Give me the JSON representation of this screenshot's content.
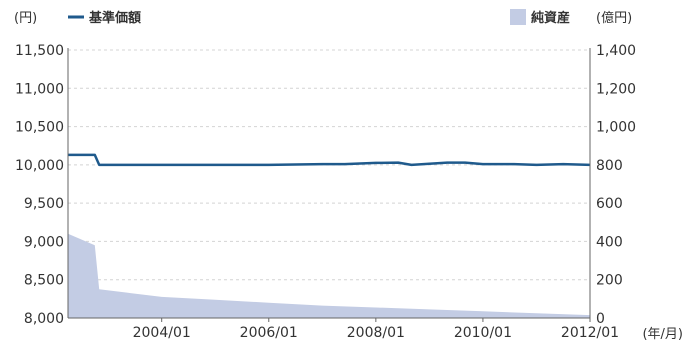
{
  "chart_data": {
    "type": "line",
    "left_unit": "(円)",
    "right_unit": "(億円)",
    "x_unit": "(年/月)",
    "legend": {
      "nav_label": "基準価額",
      "assets_label": "純資産",
      "nav_color": "#1f5a8c",
      "assets_color": "#c3cce4"
    },
    "x_ticks": [
      "2004/01",
      "2006/01",
      "2008/01",
      "2010/01",
      "2012/01"
    ],
    "x_range": [
      "2002/04",
      "2012/01"
    ],
    "y_left": {
      "min": 8000,
      "max": 11500,
      "ticks": [
        "8,000",
        "8,500",
        "9,000",
        "9,500",
        "10,000",
        "10,500",
        "11,000",
        "11,500"
      ]
    },
    "y_right": {
      "min": 0,
      "max": 1400,
      "ticks": [
        "0",
        "200",
        "400",
        "600",
        "800",
        "1,000",
        "1,200",
        "1,400"
      ]
    },
    "grid": "horizontal dashed",
    "series": [
      {
        "name": "基準価額",
        "axis": "left",
        "kind": "line",
        "points": [
          [
            "2002/04",
            10130
          ],
          [
            "2002/10",
            10130
          ],
          [
            "2002/11",
            10000
          ],
          [
            "2004/01",
            10000
          ],
          [
            "2006/01",
            10000
          ],
          [
            "2007/01",
            10010
          ],
          [
            "2007/06",
            10010
          ],
          [
            "2008/01",
            10025
          ],
          [
            "2008/06",
            10030
          ],
          [
            "2008/09",
            10000
          ],
          [
            "2009/05",
            10030
          ],
          [
            "2009/09",
            10030
          ],
          [
            "2010/01",
            10010
          ],
          [
            "2010/08",
            10010
          ],
          [
            "2011/01",
            10000
          ],
          [
            "2011/07",
            10010
          ],
          [
            "2012/01",
            10000
          ]
        ]
      },
      {
        "name": "純資産",
        "axis": "right",
        "kind": "area",
        "points": [
          [
            "2002/04",
            440
          ],
          [
            "2002/07",
            410
          ],
          [
            "2002/10",
            380
          ],
          [
            "2002/11",
            150
          ],
          [
            "2003/06",
            130
          ],
          [
            "2004/01",
            110
          ],
          [
            "2005/01",
            95
          ],
          [
            "2006/01",
            80
          ],
          [
            "2007/01",
            65
          ],
          [
            "2008/01",
            55
          ],
          [
            "2009/01",
            45
          ],
          [
            "2010/01",
            35
          ],
          [
            "2011/01",
            25
          ],
          [
            "2012/01",
            15
          ]
        ]
      }
    ]
  }
}
